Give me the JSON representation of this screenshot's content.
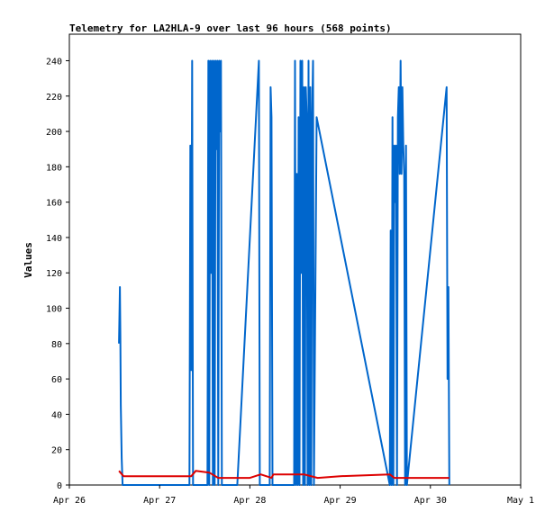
{
  "chart_data": {
    "type": "line",
    "title": "Telemetry for LA2HLA-9 over last 96 hours (568 points)",
    "ylabel": "Values",
    "xlabel": "",
    "xlim": [
      "Apr 26",
      "May 1"
    ],
    "ylim": [
      0,
      255
    ],
    "x_tick_labels": [
      "Apr 26",
      "Apr 27",
      "Apr 28",
      "Apr 29",
      "Apr 30",
      "May 1"
    ],
    "y_tick_labels": [
      "0",
      "20",
      "40",
      "60",
      "80",
      "100",
      "120",
      "140",
      "160",
      "180",
      "200",
      "220",
      "240"
    ],
    "grid": false,
    "legend": "none",
    "series": [
      {
        "color": "#0066cc",
        "points": [
          [
            0.55,
            80
          ],
          [
            0.56,
            112
          ],
          [
            0.565,
            85
          ],
          [
            0.57,
            45
          ],
          [
            0.58,
            15
          ],
          [
            0.59,
            0
          ],
          [
            1.33,
            0
          ],
          [
            1.34,
            192
          ],
          [
            1.35,
            65
          ],
          [
            1.36,
            240
          ],
          [
            1.37,
            0
          ],
          [
            1.53,
            0
          ],
          [
            1.54,
            240
          ],
          [
            1.55,
            0
          ],
          [
            1.56,
            240
          ],
          [
            1.57,
            120
          ],
          [
            1.58,
            240
          ],
          [
            1.59,
            0
          ],
          [
            1.6,
            240
          ],
          [
            1.61,
            0
          ],
          [
            1.62,
            240
          ],
          [
            1.63,
            190
          ],
          [
            1.64,
            240
          ],
          [
            1.65,
            0
          ],
          [
            1.66,
            240
          ],
          [
            1.67,
            200
          ],
          [
            1.68,
            240
          ],
          [
            1.69,
            0
          ],
          [
            1.86,
            0
          ],
          [
            2.1,
            240
          ],
          [
            2.11,
            0
          ],
          [
            2.22,
            0
          ],
          [
            2.23,
            225
          ],
          [
            2.24,
            208
          ],
          [
            2.25,
            0
          ],
          [
            2.49,
            0
          ],
          [
            2.5,
            240
          ],
          [
            2.51,
            0
          ],
          [
            2.52,
            176
          ],
          [
            2.53,
            0
          ],
          [
            2.54,
            208
          ],
          [
            2.55,
            0
          ],
          [
            2.56,
            240
          ],
          [
            2.57,
            120
          ],
          [
            2.58,
            240
          ],
          [
            2.59,
            0
          ],
          [
            2.6,
            225
          ],
          [
            2.61,
            0
          ],
          [
            2.62,
            225
          ],
          [
            2.63,
            208
          ],
          [
            2.64,
            0
          ],
          [
            2.65,
            240
          ],
          [
            2.66,
            0
          ],
          [
            2.67,
            225
          ],
          [
            2.68,
            0
          ],
          [
            2.69,
            208
          ],
          [
            2.7,
            240
          ],
          [
            2.71,
            0
          ],
          [
            2.74,
            208
          ],
          [
            3.55,
            0
          ],
          [
            3.56,
            144
          ],
          [
            3.57,
            0
          ],
          [
            3.58,
            208
          ],
          [
            3.59,
            0
          ],
          [
            3.6,
            192
          ],
          [
            3.61,
            160
          ],
          [
            3.62,
            192
          ],
          [
            3.63,
            0
          ],
          [
            3.64,
            208
          ],
          [
            3.65,
            225
          ],
          [
            3.66,
            176
          ],
          [
            3.67,
            240
          ],
          [
            3.68,
            176
          ],
          [
            3.69,
            225
          ],
          [
            3.7,
            192
          ],
          [
            3.71,
            176
          ],
          [
            3.72,
            0
          ],
          [
            3.73,
            192
          ],
          [
            3.74,
            0
          ],
          [
            4.18,
            225
          ],
          [
            4.19,
            60
          ],
          [
            4.2,
            112
          ],
          [
            4.21,
            0
          ]
        ]
      },
      {
        "color": "#dd0000",
        "points": [
          [
            0.55,
            8
          ],
          [
            0.6,
            5
          ],
          [
            1.35,
            5
          ],
          [
            1.4,
            8
          ],
          [
            1.55,
            7
          ],
          [
            1.65,
            4
          ],
          [
            2.0,
            4
          ],
          [
            2.12,
            6
          ],
          [
            2.24,
            4
          ],
          [
            2.26,
            6
          ],
          [
            2.6,
            6
          ],
          [
            2.75,
            4
          ],
          [
            3.0,
            5
          ],
          [
            3.55,
            6
          ],
          [
            3.6,
            4
          ],
          [
            4.21,
            4
          ]
        ]
      }
    ]
  }
}
